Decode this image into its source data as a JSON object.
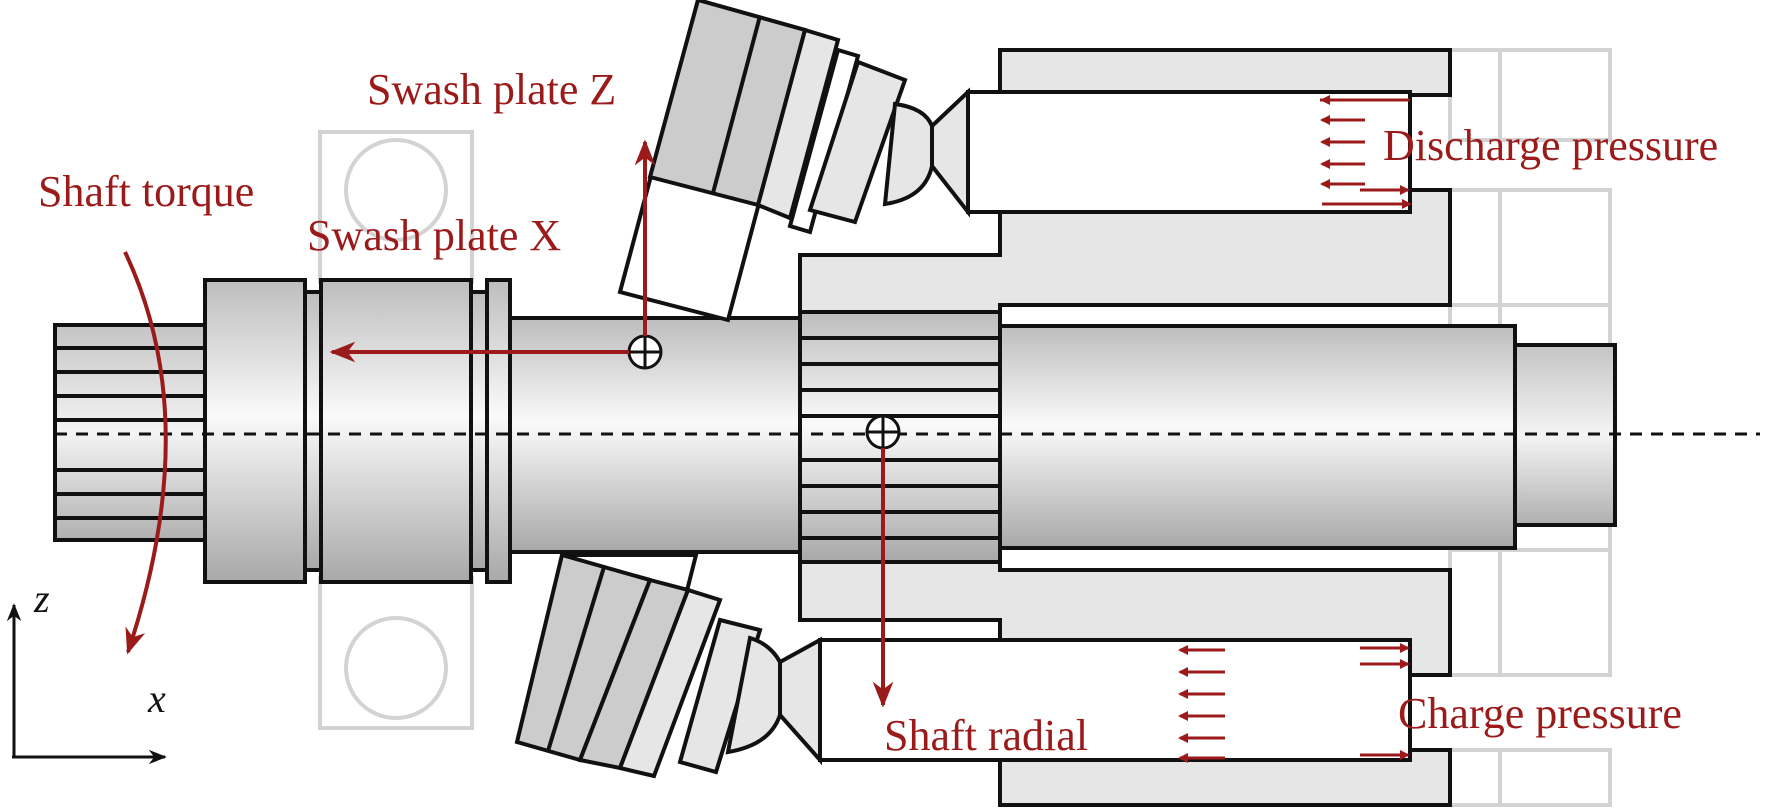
{
  "labels": {
    "swash_plate_z": "Swash plate Z",
    "swash_plate_x": "Swash plate X",
    "shaft_torque": "Shaft torque",
    "discharge_pressure": "Discharge pressure",
    "charge_pressure": "Charge pressure",
    "shaft_radial": "Shaft radial"
  },
  "axes": {
    "vertical": "z",
    "horizontal": "x"
  },
  "colors": {
    "force_arrows": "#9b1b1b",
    "outline": "#111111",
    "housing_fill": "#e6e6e6",
    "swash_fill": "#cccccc",
    "ghost_bearing": "#d3d3d3"
  }
}
